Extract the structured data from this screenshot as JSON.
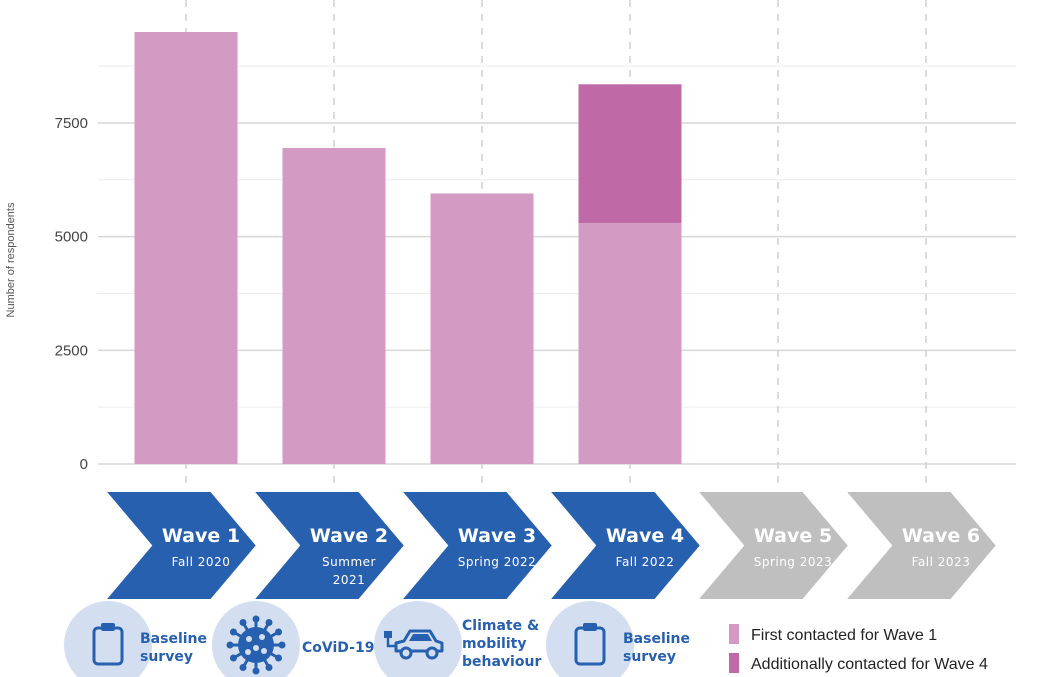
{
  "chart_data": {
    "type": "bar",
    "stacked": true,
    "xlabel": "",
    "ylabel": "Number of respondents",
    "ylim": [
      0,
      9700
    ],
    "y_ticks": [
      0,
      2500,
      5000,
      7500
    ],
    "grid": true,
    "categories": [
      "Wave 1",
      "Wave 2",
      "Wave 3",
      "Wave 4",
      "Wave 5",
      "Wave 6"
    ],
    "series": [
      {
        "name": "First contacted for Wave 1",
        "color": "#d39ac4",
        "values": [
          9500,
          6950,
          5950,
          5300,
          null,
          null
        ]
      },
      {
        "name": "Additionally contacted for Wave 4",
        "color": "#bf69a6",
        "values": [
          0,
          0,
          0,
          3050,
          null,
          null
        ]
      }
    ],
    "legend_position": "bottom-right"
  },
  "waves": [
    {
      "title": "Wave 1",
      "subtitle": [
        "Fall 2020"
      ],
      "active": true
    },
    {
      "title": "Wave 2",
      "subtitle": [
        "Summer",
        "2021"
      ],
      "active": true
    },
    {
      "title": "Wave 3",
      "subtitle": [
        "Spring 2022"
      ],
      "active": true
    },
    {
      "title": "Wave 4",
      "subtitle": [
        "Fall 2022"
      ],
      "active": true
    },
    {
      "title": "Wave 5",
      "subtitle": [
        "Spring 2023"
      ],
      "active": false
    },
    {
      "title": "Wave 6",
      "subtitle": [
        "Fall 2023"
      ],
      "active": false
    }
  ],
  "topics": [
    {
      "icon": "clipboard-icon",
      "label": [
        "Baseline",
        "survey"
      ]
    },
    {
      "icon": "virus-icon",
      "label": [
        "CoViD-19"
      ]
    },
    {
      "icon": "car-icon",
      "label": [
        "Climate &",
        "mobility",
        "behaviour"
      ]
    },
    {
      "icon": "clipboard-icon",
      "label": [
        "Baseline",
        "survey"
      ]
    }
  ],
  "colors": {
    "wave_active": "#2860b0",
    "wave_inactive": "#bfbfbf",
    "topic_text": "#2860b0",
    "topic_circle": "#d3dff0"
  }
}
